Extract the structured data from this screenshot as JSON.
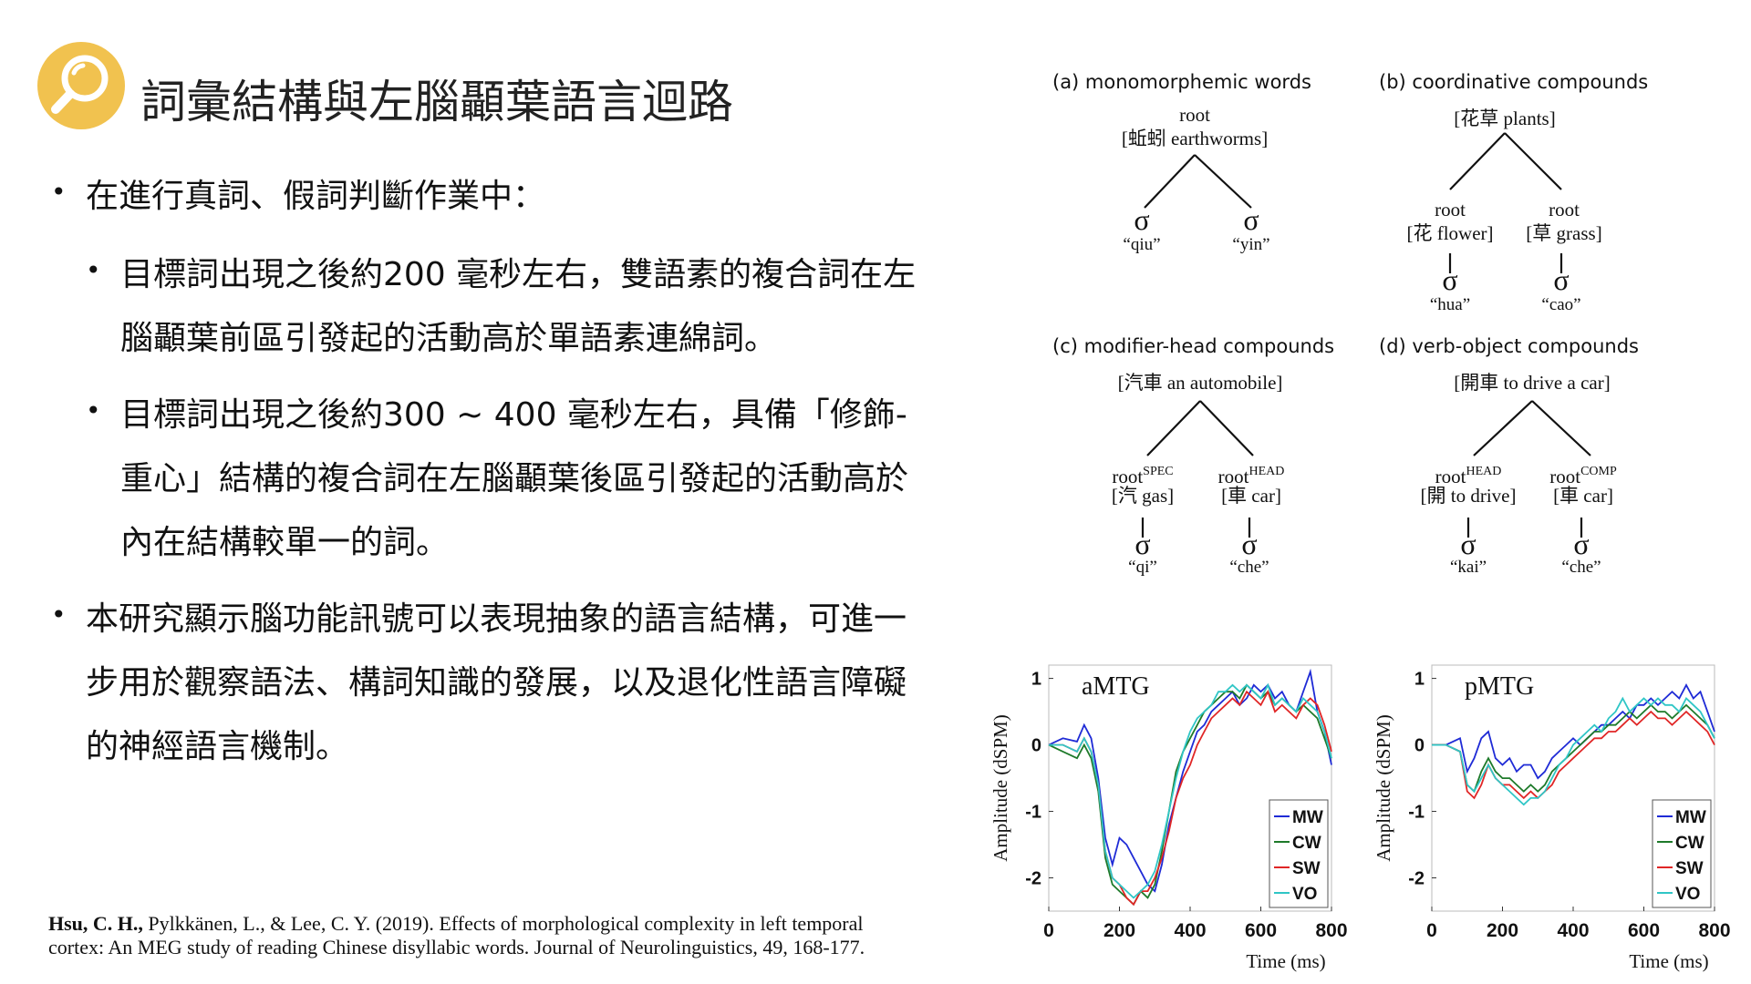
{
  "title": "詞彙結構與左腦顳葉語言迴路",
  "logo": {
    "icon": "magnifier-icon",
    "color": "#f1c24f"
  },
  "bullets": {
    "b1": "在進行真詞、假詞判斷作業中：",
    "b1_1_l1": "目標詞出現之後約200 毫秒左右，雙語素的複合詞在左",
    "b1_1_l2": "腦顳葉前區引發起的活動高於單語素連綿詞。",
    "b1_2_l1": "目標詞出現之後約300 ~ 400 毫秒左右，具備「修飾-",
    "b1_2_l2": "重心」結構的複合詞在左腦顳葉後區引發起的活動高於",
    "b1_2_l3": "內在結構較單一的詞。",
    "b2_l1": "本研究顯示腦功能訊號可以表現抽象的語言結構，可進一",
    "b2_l2": "步用於觀察語法、構詞知識的發展，以及退化性語言障礙",
    "b2_l3": "的神經語言機制。"
  },
  "citation": {
    "author": "Hsu, C. H.,",
    "rest": " Pylkkänen, L., & Lee, C. Y. (2019). Effects of morphological complexity in left temporal cortex: An MEG study of reading Chinese disyllabic words. Journal of Neurolinguistics, 49, 168-177."
  },
  "trees": {
    "a": {
      "heading": "(a) monomorphemic words",
      "root1": "root",
      "root2": "[蚯蚓 earthworms]",
      "sig": "σ",
      "syl_left": "“qiu”",
      "syl_right": "“yin”"
    },
    "b": {
      "heading": "(b) coordinative compounds",
      "top": "[花草 plants]",
      "left_root": "root",
      "left_gloss": "[花 flower]",
      "right_root": "root",
      "right_gloss": "[草 grass]",
      "syl_left": "“hua”",
      "syl_right": "“cao”"
    },
    "c": {
      "heading": "(c) modifier-head compounds",
      "top": "[汽車 an automobile]",
      "left_root": "root",
      "left_sup": "SPEC",
      "left_gloss": "[汽 gas]",
      "right_root": "root",
      "right_sup": "HEAD",
      "right_gloss": "[車 car]",
      "syl_left": "“qi”",
      "syl_right": "“che”"
    },
    "d": {
      "heading": "(d) verb-object compounds",
      "top": "[開車 to drive a car]",
      "left_root": "root",
      "left_sup": "HEAD",
      "left_gloss": "[開 to drive]",
      "right_root": "root",
      "right_sup": "COMP",
      "right_gloss": "[車 car]",
      "syl_left": "“kai”",
      "syl_right": "“che”"
    }
  },
  "chart_data": [
    {
      "type": "line",
      "title": "aMTG",
      "xlabel": "Time (ms)",
      "ylabel": "Amplitude (dSPM)",
      "xlim": [
        0,
        800
      ],
      "ylim": [
        -2.5,
        1.2
      ],
      "xticks": [
        "0",
        "200",
        "400",
        "600",
        "800"
      ],
      "yticks": [
        "1",
        "0",
        "-1",
        "-2"
      ],
      "legend_position": "bottom-right",
      "x": [
        0,
        40,
        80,
        100,
        120,
        140,
        160,
        180,
        200,
        220,
        240,
        260,
        280,
        300,
        320,
        340,
        360,
        380,
        400,
        420,
        440,
        460,
        480,
        500,
        520,
        540,
        560,
        580,
        600,
        620,
        640,
        660,
        680,
        700,
        720,
        740,
        760,
        780,
        800
      ],
      "series": [
        {
          "name": "MW",
          "color": "#1f2bd6",
          "values": [
            0.0,
            0.1,
            0.05,
            0.3,
            0.1,
            -0.5,
            -1.4,
            -1.8,
            -1.4,
            -1.5,
            -1.7,
            -1.9,
            -2.1,
            -2.2,
            -1.8,
            -1.2,
            -0.8,
            -0.4,
            -0.1,
            0.2,
            0.3,
            0.5,
            0.6,
            0.7,
            0.8,
            0.6,
            0.7,
            0.9,
            0.8,
            0.9,
            0.7,
            0.8,
            0.6,
            0.5,
            0.8,
            1.1,
            0.5,
            0.2,
            -0.3
          ]
        },
        {
          "name": "CW",
          "color": "#1e7a2a",
          "values": [
            0.0,
            -0.1,
            -0.2,
            0.0,
            -0.2,
            -0.7,
            -1.7,
            -2.1,
            -2.2,
            -2.3,
            -2.4,
            -2.2,
            -2.3,
            -2.1,
            -1.6,
            -1.0,
            -0.4,
            -0.1,
            0.1,
            0.3,
            0.5,
            0.6,
            0.7,
            0.8,
            0.8,
            0.7,
            0.9,
            0.8,
            0.7,
            0.8,
            0.6,
            0.7,
            0.6,
            0.5,
            0.6,
            0.5,
            0.4,
            0.1,
            -0.2
          ]
        },
        {
          "name": "SW",
          "color": "#e02626",
          "values": [
            0.0,
            0.0,
            -0.1,
            0.1,
            -0.1,
            -0.6,
            -1.6,
            -2.0,
            -2.1,
            -2.3,
            -2.4,
            -2.2,
            -2.2,
            -2.0,
            -1.7,
            -1.3,
            -0.8,
            -0.5,
            -0.3,
            0.0,
            0.2,
            0.4,
            0.5,
            0.6,
            0.7,
            0.6,
            0.8,
            0.7,
            0.6,
            0.8,
            0.5,
            0.6,
            0.5,
            0.4,
            0.6,
            0.7,
            0.6,
            0.3,
            -0.1
          ]
        },
        {
          "name": "VO",
          "color": "#2fc6c6",
          "values": [
            0.0,
            0.0,
            -0.1,
            0.1,
            -0.1,
            -0.6,
            -1.6,
            -2.0,
            -2.1,
            -2.2,
            -2.3,
            -2.2,
            -2.1,
            -1.9,
            -1.5,
            -1.0,
            -0.5,
            -0.1,
            0.2,
            0.4,
            0.5,
            0.6,
            0.8,
            0.8,
            0.9,
            0.8,
            0.9,
            0.8,
            0.7,
            0.9,
            0.6,
            0.7,
            0.6,
            0.5,
            0.7,
            0.6,
            0.5,
            0.2,
            -0.2
          ]
        }
      ]
    },
    {
      "type": "line",
      "title": "pMTG",
      "xlabel": "Time (ms)",
      "ylabel": "Amplitude (dSPM)",
      "xlim": [
        0,
        800
      ],
      "ylim": [
        -2.5,
        1.2
      ],
      "xticks": [
        "0",
        "200",
        "400",
        "600",
        "800"
      ],
      "yticks": [
        "1",
        "0",
        "-1",
        "-2"
      ],
      "legend_position": "bottom-right",
      "x": [
        0,
        40,
        80,
        100,
        120,
        140,
        160,
        180,
        200,
        220,
        240,
        260,
        280,
        300,
        320,
        340,
        360,
        380,
        400,
        420,
        440,
        460,
        480,
        500,
        520,
        540,
        560,
        580,
        600,
        620,
        640,
        660,
        680,
        700,
        720,
        740,
        760,
        780,
        800
      ],
      "series": [
        {
          "name": "MW",
          "color": "#1f2bd6",
          "values": [
            0.0,
            0.0,
            0.1,
            -0.4,
            -0.2,
            0.1,
            0.2,
            -0.2,
            -0.3,
            -0.2,
            -0.4,
            -0.3,
            -0.3,
            -0.5,
            -0.4,
            -0.2,
            -0.1,
            0.0,
            0.1,
            0.0,
            0.1,
            0.2,
            0.3,
            0.3,
            0.4,
            0.5,
            0.4,
            0.6,
            0.6,
            0.7,
            0.6,
            0.7,
            0.8,
            0.7,
            0.9,
            0.7,
            0.8,
            0.5,
            0.2
          ]
        },
        {
          "name": "CW",
          "color": "#1e7a2a",
          "values": [
            0.0,
            0.0,
            -0.1,
            -0.6,
            -0.7,
            -0.4,
            -0.2,
            -0.4,
            -0.5,
            -0.5,
            -0.6,
            -0.7,
            -0.6,
            -0.7,
            -0.6,
            -0.4,
            -0.3,
            -0.2,
            -0.1,
            0.0,
            0.1,
            0.2,
            0.2,
            0.3,
            0.3,
            0.4,
            0.5,
            0.4,
            0.5,
            0.6,
            0.5,
            0.5,
            0.4,
            0.5,
            0.6,
            0.5,
            0.4,
            0.3,
            0.1
          ]
        },
        {
          "name": "SW",
          "color": "#e02626",
          "values": [
            0.0,
            0.0,
            -0.1,
            -0.7,
            -0.8,
            -0.6,
            -0.3,
            -0.5,
            -0.6,
            -0.6,
            -0.7,
            -0.8,
            -0.7,
            -0.8,
            -0.7,
            -0.6,
            -0.4,
            -0.3,
            -0.2,
            -0.1,
            0.0,
            0.1,
            0.1,
            0.2,
            0.2,
            0.3,
            0.4,
            0.3,
            0.4,
            0.5,
            0.4,
            0.4,
            0.3,
            0.4,
            0.5,
            0.4,
            0.3,
            0.2,
            0.0
          ]
        },
        {
          "name": "VO",
          "color": "#2fc6c6",
          "values": [
            0.0,
            0.0,
            -0.1,
            -0.6,
            -0.7,
            -0.5,
            -0.3,
            -0.5,
            -0.6,
            -0.7,
            -0.8,
            -0.9,
            -0.8,
            -0.8,
            -0.7,
            -0.5,
            -0.3,
            -0.2,
            0.0,
            0.1,
            0.2,
            0.3,
            0.2,
            0.4,
            0.5,
            0.7,
            0.5,
            0.6,
            0.7,
            0.6,
            0.7,
            0.6,
            0.6,
            0.5,
            0.7,
            0.6,
            0.5,
            0.3,
            0.1
          ]
        }
      ]
    }
  ]
}
